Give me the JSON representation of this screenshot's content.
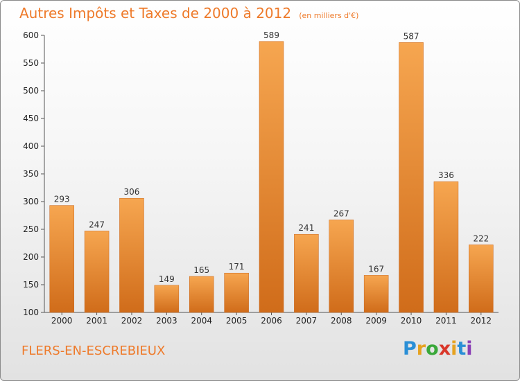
{
  "header": {
    "title": "Autres Impôts et Taxes de 2000 à 2012",
    "unit": "(en milliers d'€)"
  },
  "footer": {
    "city": "FLERS-EN-ESCREBIEUX",
    "logo_letters": [
      "P",
      "r",
      "o",
      "x",
      "i",
      "t",
      "i"
    ],
    "logo_colors": [
      "#2a8fd6",
      "#e6a21f",
      "#3aa83a",
      "#d9372a",
      "#e6a21f",
      "#2a8fd6",
      "#8a3fb5"
    ]
  },
  "colors": {
    "bar_top": "#f6a650",
    "bar_bottom": "#d06c1a",
    "axis": "#555555",
    "grid": "#bbbbbb"
  },
  "chart_data": {
    "type": "bar",
    "title": "Autres Impôts et Taxes de 2000 à 2012",
    "ylabel": "",
    "xlabel": "",
    "ylim": [
      100,
      600
    ],
    "yticks": [
      100,
      150,
      200,
      250,
      300,
      350,
      400,
      450,
      500,
      550,
      600
    ],
    "categories": [
      "2000",
      "2001",
      "2002",
      "2003",
      "2004",
      "2005",
      "2006",
      "2007",
      "2008",
      "2009",
      "2010",
      "2011",
      "2012"
    ],
    "values": [
      293,
      247,
      306,
      149,
      165,
      171,
      589,
      241,
      267,
      167,
      587,
      336,
      222
    ],
    "grid": false
  }
}
